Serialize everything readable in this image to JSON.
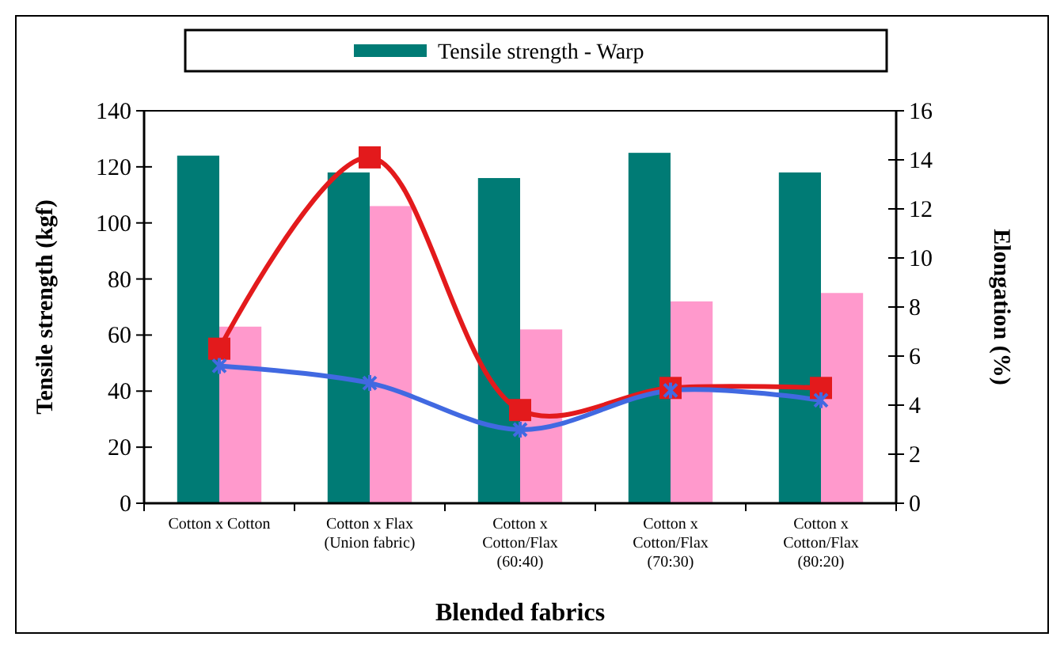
{
  "chart_data": {
    "type": "bar",
    "xlabel": "Blended fabrics",
    "ylabel": "Tensile strength (kgf)",
    "y2label": "Elongation (%)",
    "categories": [
      "Cotton x Cotton",
      "Cotton x Flax\n(Union fabric)",
      "Cotton x\nCotton/Flax\n(60:40)",
      "Cotton x\nCotton/Flax\n(70:30)",
      "Cotton x\nCotton/Flax\n(80:20)"
    ],
    "series": [
      {
        "name": "Tensile strength - Warp",
        "color": "#007b75",
        "values": [
          124,
          118,
          116,
          125,
          118
        ]
      },
      {
        "color": "#ff99cc",
        "values": [
          63,
          106,
          62,
          72,
          75
        ]
      },
      {
        "type": "line",
        "axis": "y2",
        "color": "#e31a1c",
        "marker": "square",
        "values": [
          6.3,
          14.1,
          3.8,
          4.7,
          4.7
        ]
      },
      {
        "type": "line",
        "axis": "y2",
        "color": "#4169e1",
        "marker": "cross",
        "values": [
          5.6,
          4.9,
          3.0,
          4.6,
          4.2
        ]
      }
    ],
    "ylim": [
      0,
      140
    ],
    "yticks": [
      0,
      20,
      40,
      60,
      80,
      100,
      120,
      140
    ],
    "y2lim": [
      0,
      16
    ],
    "y2ticks": [
      0,
      2,
      4,
      6,
      8,
      10,
      12,
      14,
      16
    ],
    "legend": "top",
    "grid": false
  }
}
